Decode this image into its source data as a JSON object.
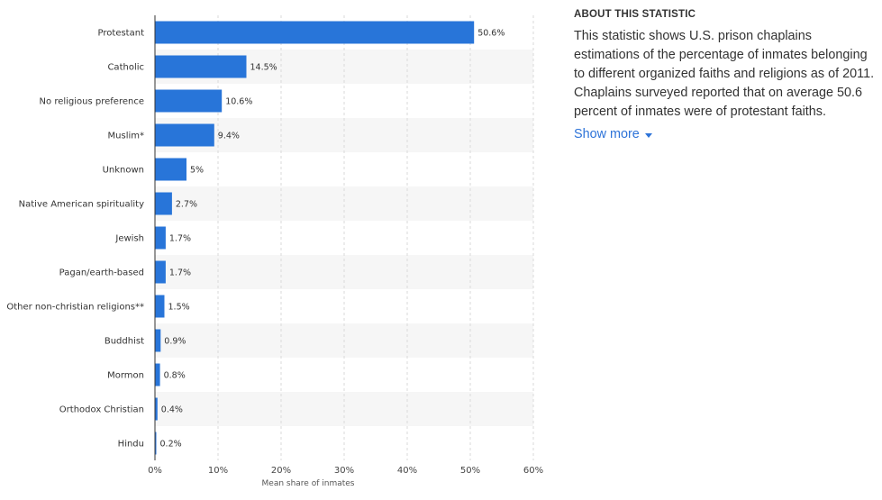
{
  "chart_data": {
    "type": "bar",
    "orientation": "horizontal",
    "categories": [
      "Protestant",
      "Catholic",
      "No religious preference",
      "Muslim*",
      "Unknown",
      "Native American spirituality",
      "Jewish",
      "Pagan/earth-based",
      "Other non-christian religions**",
      "Buddhist",
      "Mormon",
      "Orthodox Christian",
      "Hindu"
    ],
    "values": [
      50.6,
      14.5,
      10.6,
      9.4,
      5,
      2.7,
      1.7,
      1.7,
      1.5,
      0.9,
      0.8,
      0.4,
      0.2
    ],
    "value_labels": [
      "50.6%",
      "14.5%",
      "10.6%",
      "9.4%",
      "5%",
      "2.7%",
      "1.7%",
      "1.7%",
      "1.5%",
      "0.9%",
      "0.8%",
      "0.4%",
      "0.2%"
    ],
    "xlim": [
      0,
      60
    ],
    "xticks": [
      0,
      10,
      20,
      30,
      40,
      50,
      60
    ],
    "xtick_labels": [
      "0%",
      "10%",
      "20%",
      "30%",
      "40%",
      "50%",
      "60%"
    ],
    "xlabel": "Mean share of inmates",
    "ylabel": "",
    "title": "",
    "grid": true,
    "legend": "none",
    "colors": {
      "bar": "#2875d9",
      "stripe": "#f6f6f6",
      "grid": "#d9d9d9",
      "axis": "#333333"
    }
  },
  "about": {
    "heading": "ABOUT THIS STATISTIC",
    "text": "This statistic shows U.S. prison chaplains estimations of the percentage of inmates belonging to different organized faiths and religions as of 2011. Chaplains surveyed reported that on average 50.6 percent of inmates were of protestant faiths.",
    "show_more_label": "Show more",
    "show_more_icon": "caret-down-icon",
    "link_color": "#2d73d8"
  }
}
